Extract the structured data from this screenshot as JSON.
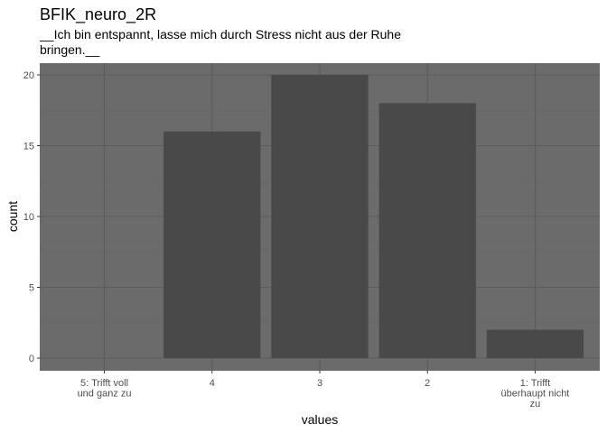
{
  "chart_data": {
    "type": "bar",
    "title": "BFIK_neuro_2R",
    "subtitle_lines": [
      "__Ich bin entspannt, lasse mich durch Stress nicht aus der Ruhe",
      "bringen.__"
    ],
    "xlabel": "values",
    "ylabel": "count",
    "categories": [
      "5: Trifft voll und ganz zu",
      "4",
      "3",
      "2",
      "1: Trifft überhaupt nicht zu"
    ],
    "category_label_lines": [
      [
        "5: Trifft voll",
        "und ganz zu"
      ],
      [
        "4"
      ],
      [
        "3"
      ],
      [
        "2"
      ],
      [
        "1: Trifft",
        "überhaupt nicht",
        "zu"
      ]
    ],
    "values": [
      0,
      16,
      20,
      18,
      2
    ],
    "ylim": [
      0,
      21
    ],
    "yticks": [
      0,
      5,
      10,
      15,
      20
    ],
    "grid": true,
    "legend": "none",
    "colors": {
      "panel": "#6b6b6b",
      "grid_major": "#5c5c5c",
      "grid_minor": "#656565",
      "bar": "#494949",
      "tick_text": "#4d4d4d"
    }
  }
}
